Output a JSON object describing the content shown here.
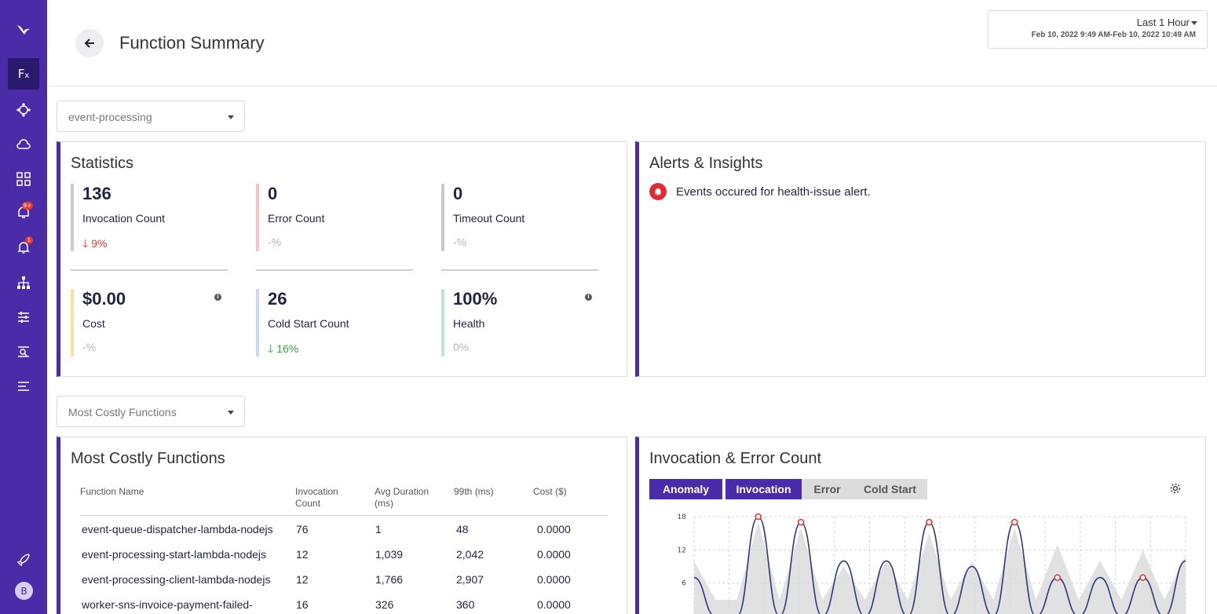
{
  "header": {
    "title": "Function Summary",
    "time_range": "Last 1 Hour",
    "time_span": "Feb 10, 2022 9:49 AM-Feb 10, 2022 10:49 AM"
  },
  "sidebar": {
    "items": [
      {
        "icon": "logo-bird-icon"
      },
      {
        "icon": "function-icon",
        "label": "Fx",
        "active": true
      },
      {
        "icon": "cluster-icon"
      },
      {
        "icon": "cloud-icon"
      },
      {
        "icon": "dashboard-grid-icon"
      },
      {
        "icon": "alert-rules-icon",
        "badge": "9+"
      },
      {
        "icon": "notification-bell-icon",
        "badge": "1"
      },
      {
        "icon": "hierarchy-icon"
      },
      {
        "icon": "filter-sliders-icon"
      },
      {
        "icon": "log-search-icon"
      },
      {
        "icon": "list-icon"
      },
      {
        "icon": "rocket-icon"
      }
    ],
    "avatar": "B"
  },
  "app_select": {
    "value": "event-processing"
  },
  "statistics": {
    "title": "Statistics",
    "items": [
      {
        "value": "136",
        "label": "Invocation Count",
        "change": "9%",
        "trend": "down",
        "color": "#c9c9cc",
        "change_color": "#e53935"
      },
      {
        "value": "0",
        "label": "Error Count",
        "change": "-%",
        "trend": "none",
        "color": "#f2c4c8",
        "change_color": "#b5b5b5"
      },
      {
        "value": "0",
        "label": "Timeout Count",
        "change": "-%",
        "trend": "none",
        "color": "#c9c9cc",
        "change_color": "#b5b5b5"
      },
      {
        "value": "$0.00",
        "label": "Cost",
        "change": "-%",
        "trend": "none",
        "color": "#f8e39a",
        "change_color": "#b5b5b5",
        "info": true
      },
      {
        "value": "26",
        "label": "Cold Start Count",
        "change": "16%",
        "trend": "down",
        "color": "#c9d8ea",
        "change_color": "#3aa047"
      },
      {
        "value": "100%",
        "label": "Health",
        "change": "0%",
        "trend": "none",
        "color": "#bfe3d6",
        "change_color": "#b5b5b5",
        "info": true
      }
    ]
  },
  "alerts": {
    "title": "Alerts & Insights",
    "items": [
      "Events occured for health-issue alert."
    ]
  },
  "list_select": {
    "value": "Most Costly Functions"
  },
  "costly": {
    "title": "Most Costly Functions",
    "columns": [
      "Function Name",
      "Invocation\nCount",
      "Avg Duration\n(ms)",
      "99th (ms)",
      "Cost ($)"
    ],
    "rows": [
      [
        "event-queue-dispatcher-lambda-nodejs",
        "76",
        "1",
        "48",
        "0.0000"
      ],
      [
        "event-processing-start-lambda-nodejs",
        "12",
        "1,039",
        "2,042",
        "0.0000"
      ],
      [
        "event-processing-client-lambda-nodejs",
        "12",
        "1,766",
        "2,907",
        "0.0000"
      ],
      [
        "worker-sns-invoice-payment-failed-",
        "16",
        "326",
        "360",
        "0.0000"
      ]
    ]
  },
  "inv_chart": {
    "title": "Invocation & Error Count",
    "tabs": [
      {
        "label": "Anomaly",
        "active": true
      },
      {
        "label": "Invocation",
        "active": true
      },
      {
        "label": "Error",
        "active": false
      },
      {
        "label": "Cold Start",
        "active": false
      }
    ]
  },
  "chart_data": {
    "type": "line",
    "title": "Invocation & Error Count",
    "ylim": [
      0,
      18
    ],
    "yticks": [
      "18",
      "12",
      "6"
    ],
    "grid": true,
    "series": [
      {
        "name": "Invocation",
        "values": [
          7,
          0,
          0,
          18,
          0,
          17,
          0,
          10,
          0,
          10,
          0,
          17,
          0,
          9,
          0,
          17,
          0,
          7,
          0,
          7,
          0,
          7,
          0,
          10
        ]
      }
    ],
    "anomaly_band_upper": [
      10,
      3,
      3,
      17,
      3,
      16,
      3,
      9,
      3,
      10,
      3,
      15,
      3,
      10,
      3,
      16,
      3,
      13,
      3,
      10,
      3,
      12,
      3,
      11
    ],
    "anomaly_points": [
      3,
      5,
      11,
      15,
      17,
      21
    ],
    "colors": {
      "line": "#283a7a",
      "band": "#d9d9d9",
      "anomaly": "#e53935"
    }
  }
}
